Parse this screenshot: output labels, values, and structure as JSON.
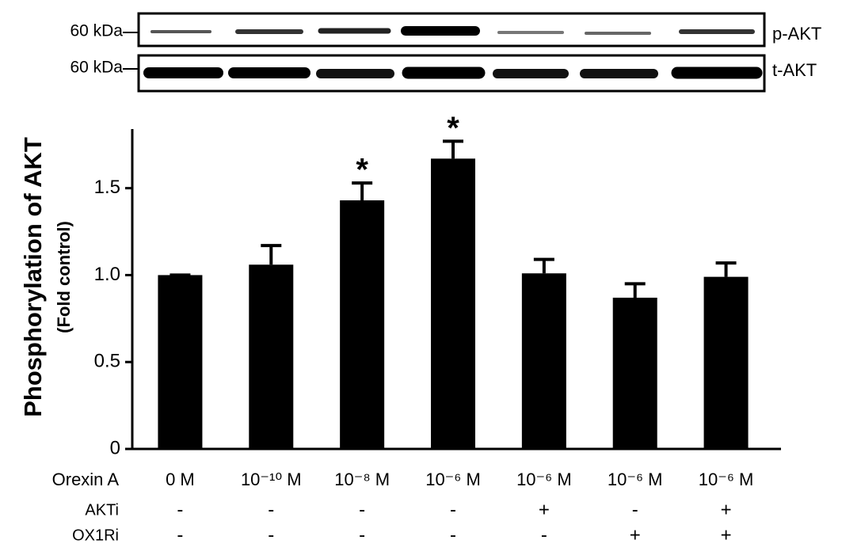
{
  "blot": {
    "rows": [
      {
        "marker": "60 kDa",
        "label": "p-AKT"
      },
      {
        "marker": "60 kDa",
        "label": "t-AKT"
      }
    ]
  },
  "chart_data": {
    "type": "bar",
    "ylabel": "Phosphorylation of AKT",
    "ylabel_sub": "(Fold control)",
    "row_label": "Orexin A",
    "categories": [
      "0 M",
      "10⁻¹⁰ M",
      "10⁻⁸ M",
      "10⁻⁶ M",
      "10⁻⁶ M",
      "10⁻⁶ M",
      "10⁻⁶ M"
    ],
    "values": [
      1.0,
      1.06,
      1.43,
      1.67,
      1.01,
      0.87,
      0.99
    ],
    "errors": [
      0,
      0.11,
      0.1,
      0.1,
      0.08,
      0.08,
      0.08
    ],
    "significance": [
      null,
      null,
      "*",
      "*",
      null,
      null,
      null
    ],
    "conditions": [
      {
        "label": "AKTi",
        "values": [
          "-",
          "-",
          "-",
          "-",
          "+",
          "-",
          "+"
        ]
      },
      {
        "label": "OX1Ri",
        "values": [
          "-",
          "-",
          "-",
          "-",
          "-",
          "+",
          "+"
        ]
      }
    ],
    "color": "#000000",
    "ylim": [
      0,
      1.84
    ],
    "yticks": [
      0,
      0.5,
      {
        "value": 1.0,
        "label": "1.0"
      },
      1.5
    ]
  }
}
